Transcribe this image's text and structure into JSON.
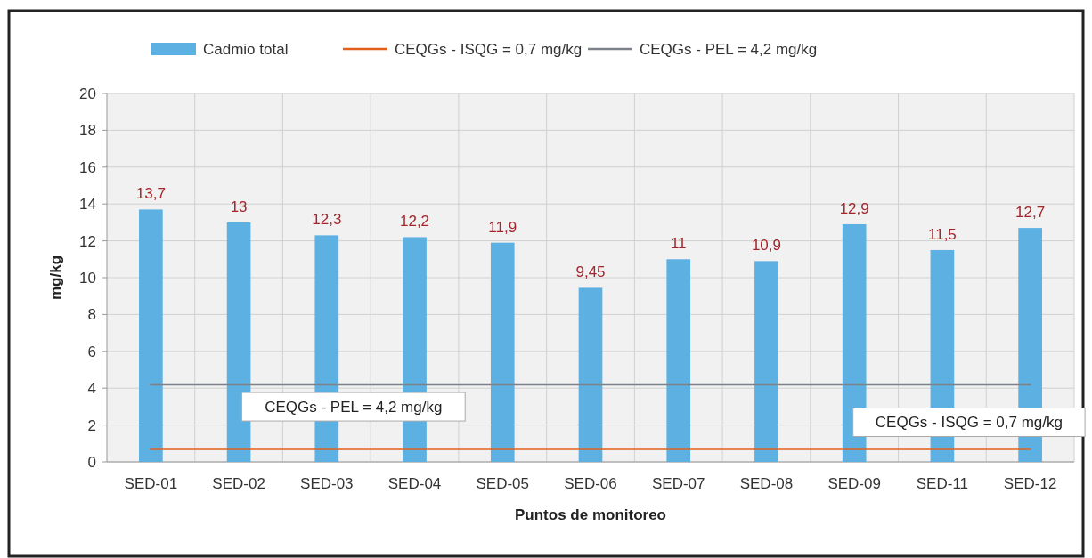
{
  "chart_data": {
    "type": "bar",
    "xlabel": "Puntos de monitoreo",
    "ylabel": "mg/kg",
    "categories": [
      "SED-01",
      "SED-02",
      "SED-03",
      "SED-04",
      "SED-05",
      "SED-06",
      "SED-07",
      "SED-08",
      "SED-09",
      "SED-11",
      "SED-12"
    ],
    "series": [
      {
        "name": "Cadmio total",
        "color": "#5cb0e2",
        "values": [
          13.7,
          13,
          12.3,
          12.2,
          11.9,
          9.45,
          11,
          10.9,
          12.9,
          11.5,
          12.7
        ],
        "value_labels": [
          "13,7",
          "13",
          "12,3",
          "12,2",
          "11,9",
          "9,45",
          "11",
          "10,9",
          "12,9",
          "11,5",
          "12,7"
        ]
      },
      {
        "name": "CEQGs - ISQG = 0,7 mg/kg",
        "type": "line",
        "color": "#e2601c",
        "values": [
          0.7,
          0.7,
          0.7,
          0.7,
          0.7,
          0.7,
          0.7,
          0.7,
          0.7,
          0.7,
          0.7
        ]
      },
      {
        "name": "CEQGs - PEL = 4,2 mg/kg",
        "type": "line",
        "color": "#7d828a",
        "values": [
          4.2,
          4.2,
          4.2,
          4.2,
          4.2,
          4.2,
          4.2,
          4.2,
          4.2,
          4.2,
          4.2
        ]
      }
    ],
    "annotations": [
      {
        "text": "CEQGs - PEL = 4,2 mg/kg",
        "x": "SED-03",
        "y": 4.2
      },
      {
        "text": "CEQGs - ISQG = 0,7 mg/kg",
        "x": "SED-11",
        "y": 0.7
      }
    ],
    "ylim": [
      0,
      20
    ],
    "yticks": [
      0,
      2,
      4,
      6,
      8,
      10,
      12,
      14,
      16,
      18,
      20
    ],
    "grid": true,
    "legend": "top"
  }
}
